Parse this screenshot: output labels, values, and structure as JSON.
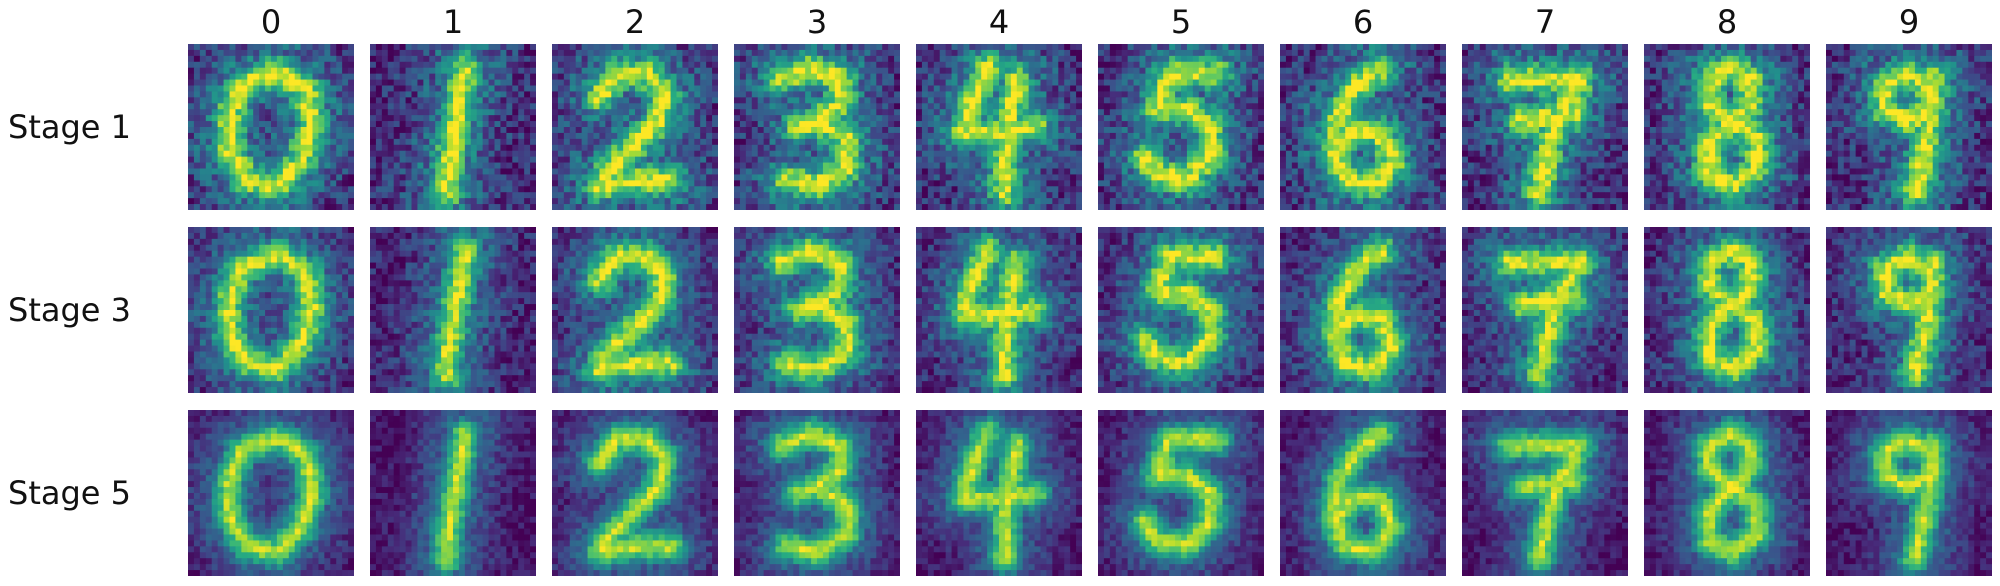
{
  "figure": {
    "column_labels": [
      "0",
      "1",
      "2",
      "3",
      "4",
      "5",
      "6",
      "7",
      "8",
      "9"
    ],
    "row_labels": [
      "Stage 1",
      "Stage 3",
      "Stage 5"
    ],
    "colormap": "viridis",
    "colors": {
      "background": "#ffffff",
      "low": "#440154",
      "mid": "#21918c",
      "high": "#fde725"
    }
  }
}
